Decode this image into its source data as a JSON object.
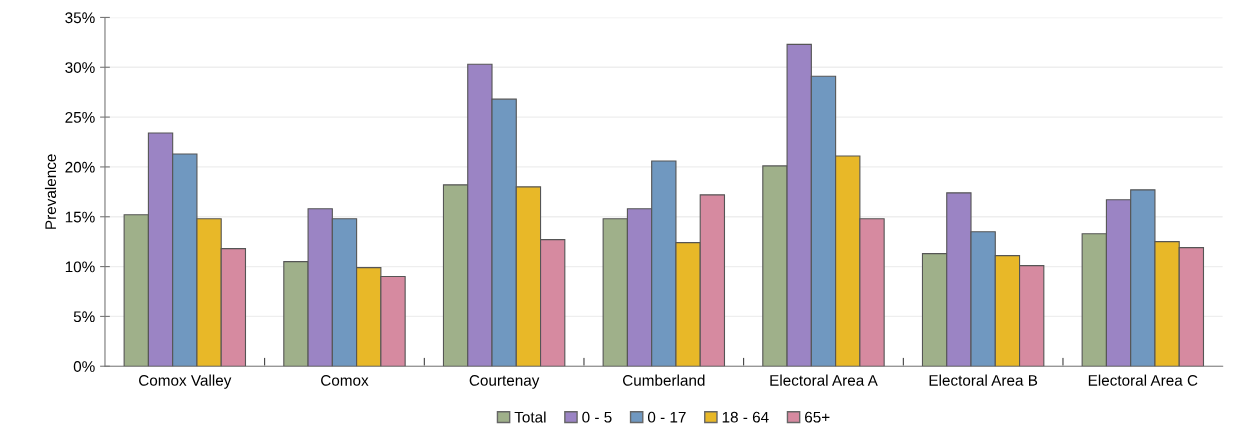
{
  "chart_data": {
    "type": "bar",
    "ylabel": "Prevalence",
    "categories": [
      "Comox Valley",
      "Comox",
      "Courtenay",
      "Cumberland",
      "Electoral Area A",
      "Electoral Area B",
      "Electoral Area C"
    ],
    "series": [
      {
        "name": "Total",
        "color": "#9fb08a",
        "values": [
          15.2,
          10.5,
          18.2,
          14.8,
          20.1,
          11.3,
          13.3
        ]
      },
      {
        "name": "0 - 5",
        "color": "#9b84c4",
        "values": [
          23.4,
          15.8,
          30.3,
          15.8,
          32.3,
          17.4,
          16.7
        ]
      },
      {
        "name": "0 - 17",
        "color": "#7098c0",
        "values": [
          21.3,
          14.8,
          26.8,
          20.6,
          29.1,
          13.5,
          17.7
        ]
      },
      {
        "name": "18 - 64",
        "color": "#e8b828",
        "values": [
          14.8,
          9.9,
          18.0,
          12.4,
          21.1,
          11.1,
          12.5
        ]
      },
      {
        "name": "65+",
        "color": "#d68aa0",
        "values": [
          11.8,
          9.0,
          12.7,
          17.2,
          14.8,
          10.1,
          11.9
        ]
      }
    ],
    "ylim": [
      0,
      35
    ],
    "yticks": [
      {
        "value": 0,
        "label": "0%"
      },
      {
        "value": 5,
        "label": "5%"
      },
      {
        "value": 10,
        "label": "10%"
      },
      {
        "value": 15,
        "label": "15%"
      },
      {
        "value": 20,
        "label": "20%"
      },
      {
        "value": 25,
        "label": "25%"
      },
      {
        "value": 30,
        "label": "30%"
      },
      {
        "value": 35,
        "label": "35%"
      }
    ],
    "grid": "y",
    "legend": "bottom"
  }
}
